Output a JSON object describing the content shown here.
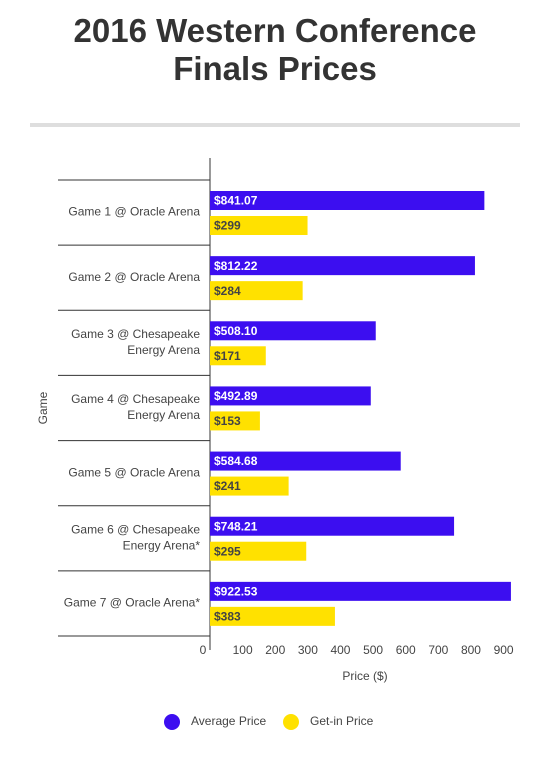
{
  "chart_data": {
    "type": "bar",
    "orientation": "horizontal",
    "title": "2016 Western Conference\nFinals Prices",
    "x_label": "Price ($)",
    "y_label": "Game",
    "categories": [
      "Game 1 @ Oracle Arena",
      "Game 2 @ Oracle Arena",
      "Game 3 @ Chesapeake\nEnergy Arena",
      "Game 4 @ Chesapeake\nEnergy Arena",
      "Game 5 @ Oracle Arena",
      "Game 6 @ Chesapeake\nEnergy Arena*",
      "Game 7 @ Oracle Arena*"
    ],
    "series": [
      {
        "name": "Average Price",
        "color": "#3c0ef0",
        "values": [
          841.07,
          812.22,
          508.1,
          492.89,
          584.68,
          748.21,
          922.53
        ],
        "value_labels": [
          "$841.07",
          "$812.22",
          "$508.10",
          "$492.89",
          "$584.68",
          "$748.21",
          "$922.53"
        ],
        "label_color": "#ffffff"
      },
      {
        "name": "Get-in Price",
        "color": "#ffe100",
        "values": [
          299,
          284,
          171,
          153,
          241,
          295,
          383
        ],
        "value_labels": [
          "$299",
          "$284",
          "$171",
          "$153",
          "$241",
          "$295",
          "$383"
        ],
        "label_color": "#444444"
      }
    ],
    "xlim": [
      0,
      935
    ],
    "xticks": [
      0,
      100,
      200,
      300,
      400,
      500,
      600,
      700,
      800,
      900
    ],
    "grid": false,
    "legend": "bottom"
  }
}
